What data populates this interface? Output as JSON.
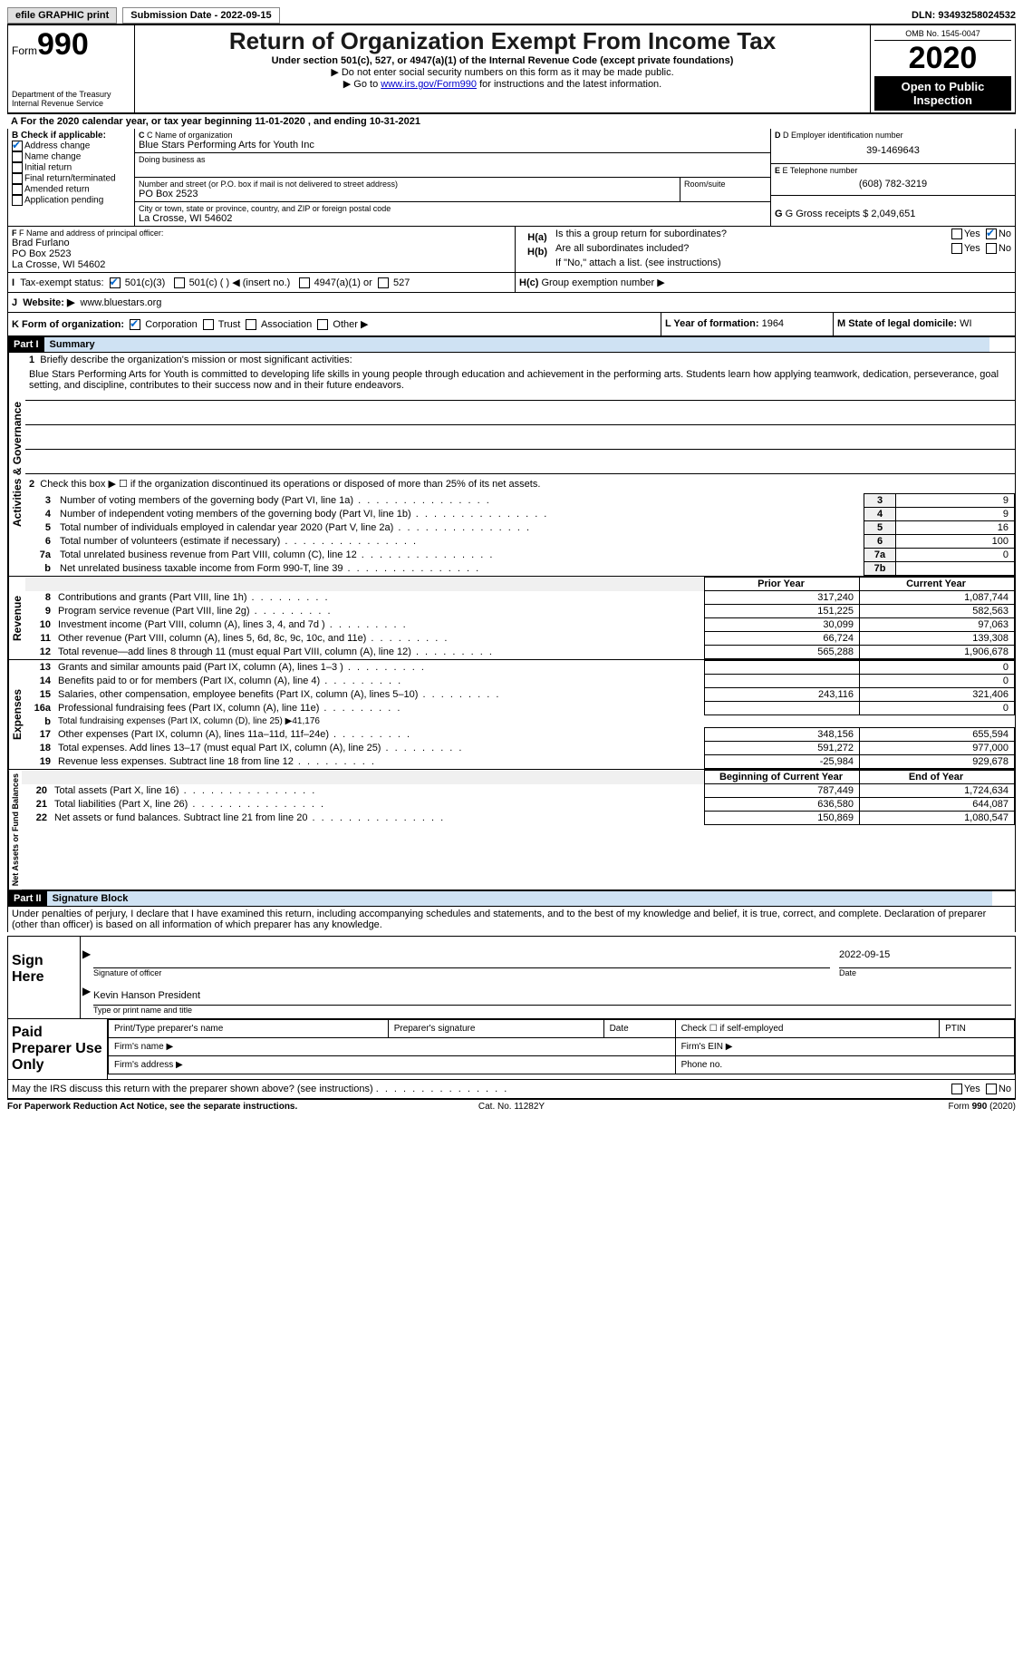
{
  "topbar": {
    "efile": "efile GRAPHIC print",
    "submission_label": "Submission Date - 2022-09-15",
    "dln": "DLN: 93493258024532"
  },
  "header": {
    "form_word": "Form",
    "form_number": "990",
    "dept": "Department of the Treasury",
    "irs": "Internal Revenue Service",
    "title": "Return of Organization Exempt From Income Tax",
    "sub1": "Under section 501(c), 527, or 4947(a)(1) of the Internal Revenue Code (except private foundations)",
    "sub2": "▶ Do not enter social security numbers on this form as it may be made public.",
    "sub3_pre": "▶ Go to ",
    "sub3_link": "www.irs.gov/Form990",
    "sub3_post": " for instructions and the latest information.",
    "omb": "OMB No. 1545-0047",
    "year": "2020",
    "open": "Open to Public Inspection"
  },
  "line_a": "A  For the 2020 calendar year, or tax year beginning 11-01-2020    , and ending 10-31-2021",
  "box_b": {
    "title": "B Check if applicable:",
    "addr": "Address change",
    "name": "Name change",
    "init": "Initial return",
    "final": "Final return/terminated",
    "amend": "Amended return",
    "app": "Application pending"
  },
  "box_c": {
    "label": "C Name of organization",
    "org": "Blue Stars Performing Arts for Youth Inc",
    "dba_label": "Doing business as",
    "addr_label": "Number and street (or P.O. box if mail is not delivered to street address)",
    "room_label": "Room/suite",
    "addr": "PO Box 2523",
    "city_label": "City or town, state or province, country, and ZIP or foreign postal code",
    "city": "La Crosse, WI  54602"
  },
  "box_d": {
    "label": "D Employer identification number",
    "val": "39-1469643"
  },
  "box_e": {
    "label": "E Telephone number",
    "val": "(608) 782-3219"
  },
  "box_g": {
    "label": "G Gross receipts $",
    "val": "2,049,651"
  },
  "box_f": {
    "label": "F Name and address of principal officer:",
    "name": "Brad Furlano",
    "addr1": "PO Box 2523",
    "addr2": "La Crosse, WI  54602"
  },
  "box_h": {
    "a_q": "Is this a group return for subordinates?",
    "b_q": "Are all subordinates included?",
    "note": "If \"No,\" attach a list. (see instructions)",
    "c_label": "Group exemption number ▶",
    "yes": "Yes",
    "no": "No"
  },
  "box_i": {
    "label": "Tax-exempt status:",
    "o1": "501(c)(3)",
    "o2": "501(c) (   ) ◀ (insert no.)",
    "o3": "4947(a)(1) or",
    "o4": "527"
  },
  "box_j": {
    "label": "Website: ▶",
    "val": "www.bluestars.org"
  },
  "box_k": {
    "label": "K Form of organization:",
    "corp": "Corporation",
    "trust": "Trust",
    "assoc": "Association",
    "other": "Other ▶"
  },
  "box_l": {
    "label": "L Year of formation:",
    "val": "1964"
  },
  "box_m": {
    "label": "M State of legal domicile:",
    "val": "WI"
  },
  "part1": {
    "tag": "Part I",
    "title": "Summary",
    "q1_label": "Briefly describe the organization's mission or most significant activities:",
    "mission": "Blue Stars Performing Arts for Youth is committed to developing life skills in young people through education and achievement in the performing arts. Students learn how applying teamwork, dedication, perseverance, goal setting, and discipline, contributes to their success now and in their future endeavors.",
    "q2": "Check this box ▶ ☐ if the organization discontinued its operations or disposed of more than 25% of its net assets.",
    "rows_gov": [
      {
        "n": "3",
        "t": "Number of voting members of the governing body (Part VI, line 1a)",
        "b": "3",
        "v": "9"
      },
      {
        "n": "4",
        "t": "Number of independent voting members of the governing body (Part VI, line 1b)",
        "b": "4",
        "v": "9"
      },
      {
        "n": "5",
        "t": "Total number of individuals employed in calendar year 2020 (Part V, line 2a)",
        "b": "5",
        "v": "16"
      },
      {
        "n": "6",
        "t": "Total number of volunteers (estimate if necessary)",
        "b": "6",
        "v": "100"
      },
      {
        "n": "7a",
        "t": "Total unrelated business revenue from Part VIII, column (C), line 12",
        "b": "7a",
        "v": "0"
      },
      {
        "n": "b",
        "t": "Net unrelated business taxable income from Form 990-T, line 39",
        "b": "7b",
        "v": ""
      }
    ],
    "hdr_prior": "Prior Year",
    "hdr_curr": "Current Year",
    "rev": [
      {
        "n": "8",
        "t": "Contributions and grants (Part VIII, line 1h)",
        "p": "317,240",
        "c": "1,087,744"
      },
      {
        "n": "9",
        "t": "Program service revenue (Part VIII, line 2g)",
        "p": "151,225",
        "c": "582,563"
      },
      {
        "n": "10",
        "t": "Investment income (Part VIII, column (A), lines 3, 4, and 7d )",
        "p": "30,099",
        "c": "97,063"
      },
      {
        "n": "11",
        "t": "Other revenue (Part VIII, column (A), lines 5, 6d, 8c, 9c, 10c, and 11e)",
        "p": "66,724",
        "c": "139,308"
      },
      {
        "n": "12",
        "t": "Total revenue—add lines 8 through 11 (must equal Part VIII, column (A), line 12)",
        "p": "565,288",
        "c": "1,906,678"
      }
    ],
    "exp": [
      {
        "n": "13",
        "t": "Grants and similar amounts paid (Part IX, column (A), lines 1–3 )",
        "p": "",
        "c": "0"
      },
      {
        "n": "14",
        "t": "Benefits paid to or for members (Part IX, column (A), line 4)",
        "p": "",
        "c": "0"
      },
      {
        "n": "15",
        "t": "Salaries, other compensation, employee benefits (Part IX, column (A), lines 5–10)",
        "p": "243,116",
        "c": "321,406"
      },
      {
        "n": "16a",
        "t": "Professional fundraising fees (Part IX, column (A), line 11e)",
        "p": "",
        "c": "0"
      },
      {
        "n": "b",
        "t": "Total fundraising expenses (Part IX, column (D), line 25) ▶41,176",
        "p": null,
        "c": null
      },
      {
        "n": "17",
        "t": "Other expenses (Part IX, column (A), lines 11a–11d, 11f–24e)",
        "p": "348,156",
        "c": "655,594"
      },
      {
        "n": "18",
        "t": "Total expenses. Add lines 13–17 (must equal Part IX, column (A), line 25)",
        "p": "591,272",
        "c": "977,000"
      },
      {
        "n": "19",
        "t": "Revenue less expenses. Subtract line 18 from line 12",
        "p": "-25,984",
        "c": "929,678"
      }
    ],
    "hdr_begin": "Beginning of Current Year",
    "hdr_end": "End of Year",
    "net": [
      {
        "n": "20",
        "t": "Total assets (Part X, line 16)",
        "p": "787,449",
        "c": "1,724,634"
      },
      {
        "n": "21",
        "t": "Total liabilities (Part X, line 26)",
        "p": "636,580",
        "c": "644,087"
      },
      {
        "n": "22",
        "t": "Net assets or fund balances. Subtract line 21 from line 20",
        "p": "150,869",
        "c": "1,080,547"
      }
    ],
    "vlabels": {
      "gov": "Activities & Governance",
      "rev": "Revenue",
      "exp": "Expenses",
      "net": "Net Assets or Fund Balances"
    }
  },
  "part2": {
    "tag": "Part II",
    "title": "Signature Block",
    "decl": "Under penalties of perjury, I declare that I have examined this return, including accompanying schedules and statements, and to the best of my knowledge and belief, it is true, correct, and complete. Declaration of preparer (other than officer) is based on all information of which preparer has any knowledge.",
    "sign_here": "Sign Here",
    "sig_officer": "Signature of officer",
    "sig_date": "Date",
    "sig_date_val": "2022-09-15",
    "typed_name": "Kevin Hanson  President",
    "typed_label": "Type or print name and title",
    "paid": "Paid Preparer Use Only",
    "prep_name": "Print/Type preparer's name",
    "prep_sig": "Preparer's signature",
    "prep_date": "Date",
    "prep_check": "Check ☐ if self-employed",
    "ptin": "PTIN",
    "firm_name": "Firm's name    ▶",
    "firm_ein": "Firm's EIN ▶",
    "firm_addr": "Firm's address ▶",
    "phone": "Phone no.",
    "discuss": "May the IRS discuss this return with the preparer shown above? (see instructions)"
  },
  "footer": {
    "left": "For Paperwork Reduction Act Notice, see the separate instructions.",
    "center": "Cat. No. 11282Y",
    "right": "Form 990 (2020)"
  }
}
